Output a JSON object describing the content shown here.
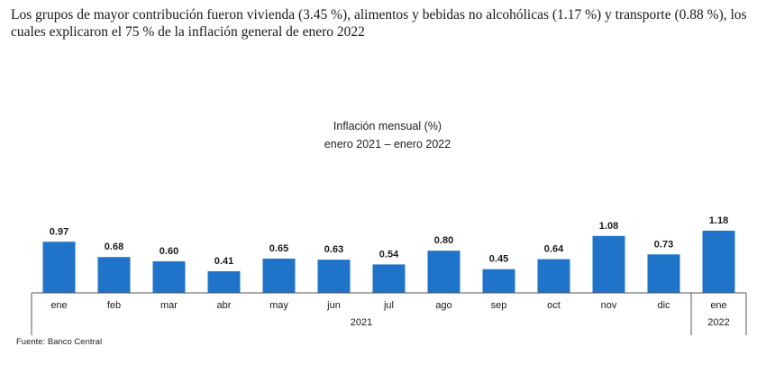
{
  "headline": "Los grupos de mayor contribución fueron vivienda (3.45 %), alimentos y bebidas no alcohólicas (1.17 %) y transporte (0.88 %), los cuales explicaron el 75 % de la inflación general de enero 2022",
  "chart_data": {
    "type": "bar",
    "title": "Inflación mensual (%)",
    "subtitle": "enero 2021 – enero 2022",
    "categories": [
      "ene",
      "feb",
      "mar",
      "abr",
      "may",
      "jun",
      "jul",
      "ago",
      "sep",
      "oct",
      "nov",
      "dic",
      "ene"
    ],
    "values": [
      0.97,
      0.68,
      0.6,
      0.41,
      0.65,
      0.63,
      0.54,
      0.8,
      0.45,
      0.64,
      1.08,
      0.73,
      1.18
    ],
    "value_labels": [
      "0.97",
      "0.68",
      "0.60",
      "0.41",
      "0.65",
      "0.63",
      "0.54",
      "0.80",
      "0.45",
      "0.64",
      "1.08",
      "0.73",
      "1.18"
    ],
    "year_groups": [
      {
        "label": "2021",
        "start": 0,
        "end": 11
      },
      {
        "label": "2022",
        "start": 12,
        "end": 12
      }
    ],
    "bar_color": "#1f74c9",
    "grid": false,
    "ylim": [
      0,
      1.3
    ]
  },
  "source": "Fuente: Banco Central"
}
